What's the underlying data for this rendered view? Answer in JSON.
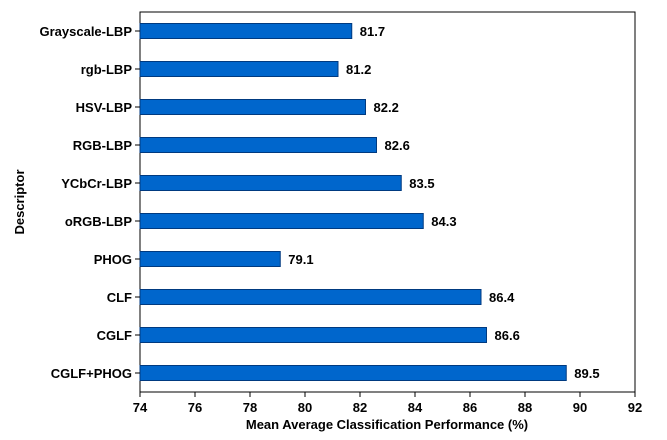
{
  "chart_data": {
    "type": "bar",
    "orientation": "horizontal",
    "categories": [
      "Grayscale-LBP",
      "rgb-LBP",
      "HSV-LBP",
      "RGB-LBP",
      "YCbCr-LBP",
      "oRGB-LBP",
      "PHOG",
      "CLF",
      "CGLF",
      "CGLF+PHOG"
    ],
    "values": [
      81.7,
      81.2,
      82.2,
      82.6,
      83.5,
      84.3,
      79.1,
      86.4,
      86.6,
      89.5
    ],
    "value_labels": [
      "81.7",
      "81.2",
      "82.2",
      "82.6",
      "83.5",
      "84.3",
      "79.1",
      "86.4",
      "86.6",
      "89.5"
    ],
    "title": "",
    "xlabel": "Mean Average Classification  Performance (%)",
    "ylabel": "Descriptor",
    "xlim": [
      74,
      92
    ],
    "xticks": [
      "74",
      "76",
      "78",
      "80",
      "82",
      "84",
      "86",
      "88",
      "90",
      "92"
    ],
    "grid": false,
    "legend": "none",
    "bar_color": "#0066cc",
    "bar_edge_color": "#003a80"
  }
}
